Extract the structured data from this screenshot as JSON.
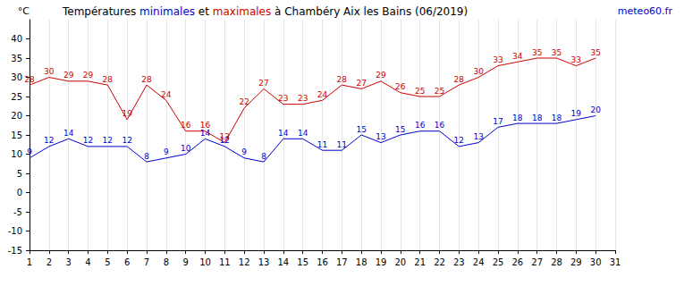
{
  "chart_data": {
    "type": "line",
    "title": "Températures minimales et maximales à Chambéry Aix les Bains (06/2019)",
    "annotations": [
      "meteo60.fr"
    ],
    "y_label": "°C",
    "categories": [
      "1",
      "2",
      "3",
      "4",
      "5",
      "6",
      "7",
      "8",
      "9",
      "10",
      "11",
      "12",
      "13",
      "14",
      "15",
      "16",
      "17",
      "18",
      "19",
      "20",
      "21",
      "22",
      "23",
      "24",
      "25",
      "26",
      "27",
      "28",
      "29",
      "30",
      "31"
    ],
    "series": [
      {
        "name": "minimales",
        "color": "#0000cc",
        "values": [
          9,
          12,
          14,
          12,
          12,
          12,
          8,
          9,
          10,
          14,
          12,
          9,
          8,
          14,
          14,
          11,
          11,
          15,
          13,
          15,
          16,
          16,
          12,
          13,
          17,
          18,
          18,
          18,
          19,
          20,
          null
        ]
      },
      {
        "name": "maximales",
        "color": "#cc0000",
        "values": [
          28,
          30,
          29,
          29,
          28,
          19,
          28,
          24,
          16,
          16,
          13,
          22,
          27,
          23,
          23,
          24,
          28,
          27,
          29,
          26,
          25,
          25,
          28,
          30,
          33,
          34,
          35,
          35,
          33,
          35,
          null
        ]
      }
    ],
    "ylim": [
      -15,
      45
    ],
    "yticks": [
      -15,
      -10,
      -5,
      0,
      5,
      10,
      15,
      20,
      25,
      30,
      35,
      40
    ],
    "grid": true,
    "data_labels": true,
    "marker": "none"
  }
}
